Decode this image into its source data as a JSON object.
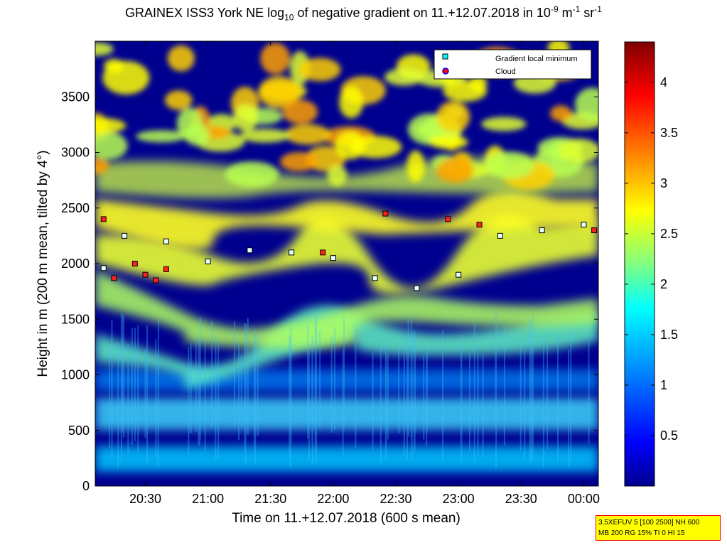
{
  "title": {
    "prefix": "GRAINEX ISS3 York NE log",
    "sub": "10",
    "middle": " of negative gradient on 11.+12.07.2018 in 10",
    "exp1": "-9",
    "unit_m": " m",
    "exp2": "-1",
    "unit_sr": " sr",
    "exp3": "-1"
  },
  "info_box": {
    "line1": "3.5XEFUV 5 [100 2500] NH 600",
    "line2": "MB 200 RG 15% TI 0 HI 15"
  },
  "legend": {
    "items": [
      {
        "label": "Gradient local minimum",
        "marker": "square",
        "color": "#00ffff"
      },
      {
        "label": "Cloud",
        "marker": "circle",
        "color": "#ff0000"
      }
    ]
  },
  "colors": {
    "background_dark": "#00008f",
    "colormap": [
      "#00008f",
      "#0000ff",
      "#0080ff",
      "#00ffff",
      "#80ff80",
      "#ffff00",
      "#ff8000",
      "#ff0000",
      "#800000"
    ]
  },
  "chart_data": {
    "type": "heatmap",
    "xlabel": "Time on 11.+12.07.2018 (600 s mean)",
    "ylabel": "Height in m (200 m mean, tilted by 4°)",
    "xlim": [
      "20:06",
      "00:07"
    ],
    "ylim": [
      0,
      4000
    ],
    "x_ticks": [
      "20:30",
      "21:00",
      "21:30",
      "22:00",
      "22:30",
      "23:00",
      "23:30",
      "00:00"
    ],
    "y_ticks": [
      0,
      500,
      1000,
      1500,
      2000,
      2500,
      3000,
      3500
    ],
    "colorbar": {
      "range": [
        0,
        4.4
      ],
      "ticks": [
        0.5,
        1,
        1.5,
        2,
        2.5,
        3,
        3.5,
        4
      ]
    },
    "series": [
      {
        "name": "Gradient local minimum",
        "type": "scatter",
        "marker": "square",
        "x": [
          "20:10",
          "20:20",
          "20:40",
          "21:00",
          "21:20",
          "21:40",
          "22:00",
          "22:20",
          "22:40",
          "23:00",
          "23:20",
          "23:40",
          "00:00"
        ],
        "y": [
          1960,
          2250,
          2200,
          2020,
          2120,
          2100,
          2050,
          1870,
          1780,
          1900,
          2250,
          2300,
          2350
        ]
      },
      {
        "name": "Cloud",
        "type": "scatter",
        "marker": "circle",
        "x": [
          "20:10",
          "20:15",
          "20:25",
          "20:30",
          "20:35",
          "20:40",
          "21:55",
          "22:25",
          "22:55",
          "23:10",
          "00:05"
        ],
        "y": [
          2400,
          1870,
          2000,
          1900,
          1850,
          1950,
          2100,
          2450,
          2400,
          2350,
          2300
        ]
      }
    ]
  }
}
